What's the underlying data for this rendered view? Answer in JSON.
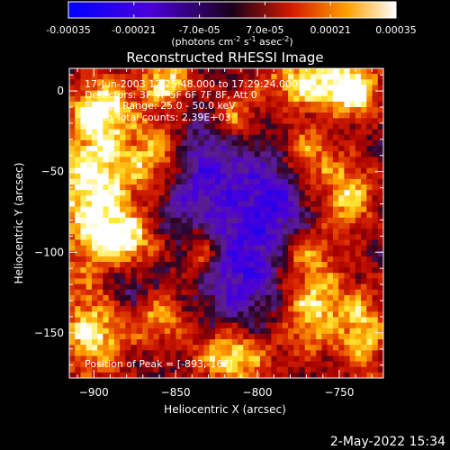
{
  "colorbar": {
    "tick_labels": [
      "-0.00035",
      "-0.00021",
      "-7.0e-05",
      "7.0e-05",
      "0.00021",
      "0.00035"
    ],
    "units_label": "(photons cm-2 s-1 asec-2)"
  },
  "footer": {
    "datestamp": "2-May-2022 15:34"
  },
  "chart_data": {
    "type": "heatmap",
    "title": "Reconstructed RHESSI Image",
    "xlabel": "Heliocentric X (arcsec)",
    "ylabel": "Heliocentric Y (arcsec)",
    "xlim": [
      -915,
      -723
    ],
    "ylim": [
      -178,
      14
    ],
    "colorbar_range": [
      -0.00035,
      0.00035
    ],
    "colormap": "blue-purple-red-yellow-white",
    "xticks": [
      -900,
      -850,
      -800,
      -750
    ],
    "yticks": [
      0,
      -50,
      -100,
      -150
    ],
    "xtick_labels": [
      "−900",
      "−850",
      "−800",
      "−750"
    ],
    "ytick_labels": [
      "0",
      "−50",
      "−100",
      "−150"
    ],
    "annotations": [
      "17-Jun-2003 17:25:48.000 to 17:29:24.000",
      "Detectors: 3F 4F 5F 6F 7F 8F, Att 0",
      "Energy Range: 25.0 - 50.0 keV",
      "Clean     Total counts: 2.39E+03",
      "Position of Peak = [-893,-167]"
    ],
    "peak": {
      "x": -893,
      "y": -167
    },
    "bright_sources": [
      {
        "x": -900,
        "y": -60,
        "sx": 18,
        "sy": 35,
        "v": 1.0
      },
      {
        "x": -860,
        "y": -40,
        "sx": 14,
        "sy": 18,
        "v": 0.9
      },
      {
        "x": -895,
        "y": -10,
        "sx": 12,
        "sy": 12,
        "v": 0.7
      },
      {
        "x": -855,
        "y": 5,
        "sx": 12,
        "sy": 10,
        "v": 0.85
      },
      {
        "x": -815,
        "y": -15,
        "sx": 10,
        "sy": 10,
        "v": 0.6
      },
      {
        "x": -768,
        "y": 5,
        "sx": 20,
        "sy": 12,
        "v": 0.9
      },
      {
        "x": -740,
        "y": 0,
        "sx": 10,
        "sy": 12,
        "v": 0.85
      },
      {
        "x": -770,
        "y": -40,
        "sx": 12,
        "sy": 14,
        "v": 0.6
      },
      {
        "x": -745,
        "y": -65,
        "sx": 12,
        "sy": 16,
        "v": 0.75
      },
      {
        "x": -880,
        "y": -95,
        "sx": 14,
        "sy": 12,
        "v": 0.8
      },
      {
        "x": -835,
        "y": -100,
        "sx": 8,
        "sy": 12,
        "v": 0.6
      },
      {
        "x": -770,
        "y": -100,
        "sx": 10,
        "sy": 10,
        "v": 0.5
      },
      {
        "x": -900,
        "y": -150,
        "sx": 16,
        "sy": 20,
        "v": 0.8
      },
      {
        "x": -860,
        "y": -140,
        "sx": 12,
        "sy": 12,
        "v": 0.65
      },
      {
        "x": -815,
        "y": -165,
        "sx": 16,
        "sy": 12,
        "v": 0.9
      },
      {
        "x": -765,
        "y": -135,
        "sx": 14,
        "sy": 20,
        "v": 0.8
      },
      {
        "x": -735,
        "y": -150,
        "sx": 10,
        "sy": 20,
        "v": 0.7
      }
    ],
    "dark_sources": [
      {
        "x": -840,
        "y": -50,
        "sx": 20,
        "sy": 25,
        "v": -0.7
      },
      {
        "x": -790,
        "y": -65,
        "sx": 15,
        "sy": 20,
        "v": -0.6
      },
      {
        "x": -810,
        "y": -110,
        "sx": 18,
        "sy": 25,
        "v": -0.6
      },
      {
        "x": -880,
        "y": -120,
        "sx": 12,
        "sy": 15,
        "v": -0.5
      }
    ]
  }
}
